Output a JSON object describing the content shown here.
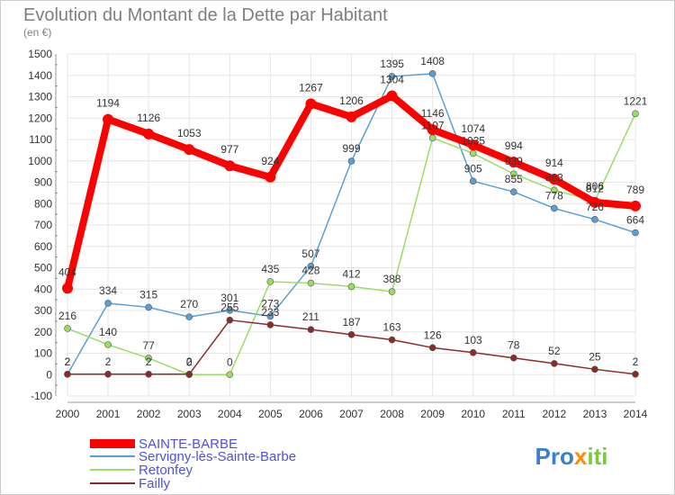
{
  "chart_data": {
    "type": "line",
    "title": "Evolution du Montant de la Dette par Habitant",
    "unit_label": "(en €)",
    "x": [
      "2000",
      "2001",
      "2002",
      "2003",
      "2004",
      "2005",
      "2006",
      "2007",
      "2008",
      "2009",
      "2010",
      "2011",
      "2012",
      "2013",
      "2014"
    ],
    "ylim": [
      -100,
      1500
    ],
    "yticks": [
      "-100",
      "0",
      "100",
      "200",
      "300",
      "400",
      "500",
      "600",
      "700",
      "800",
      "900",
      "1000",
      "1100",
      "1200",
      "1300",
      "1400",
      "1500"
    ],
    "grid": true,
    "legend_position": "bottom-left",
    "series": [
      {
        "name": "SAINTE-BARBE",
        "color": "#ff0000",
        "values": [
          404,
          1194,
          1126,
          1053,
          977,
          924,
          1267,
          1206,
          1304,
          1146,
          1074,
          994,
          914,
          806,
          789
        ],
        "labels": [
          "404",
          "1194",
          "1126",
          "1053",
          "977",
          "924",
          "1267",
          "1206",
          "1304",
          "1146",
          "1074",
          "994",
          "914",
          "806",
          "789"
        ]
      },
      {
        "name": "Servigny-lès-Sainte-Barbe",
        "color": "#5a9fd4",
        "values": [
          2,
          334,
          315,
          270,
          301,
          273,
          507,
          999,
          1395,
          1408,
          905,
          855,
          778,
          726,
          664
        ],
        "labels": [
          "2",
          "334",
          "315",
          "270",
          "301",
          "273",
          "507",
          "999",
          "1395",
          "1408",
          "905",
          "855",
          "778",
          "726",
          "664"
        ]
      },
      {
        "name": "Retonfey",
        "color": "#99dd66",
        "values": [
          216,
          140,
          77,
          0,
          0,
          435,
          428,
          412,
          388,
          1107,
          1035,
          939,
          863,
          812,
          1221
        ],
        "labels": [
          "216",
          "140",
          "77",
          "0",
          "0",
          "435",
          "428",
          "412",
          "388",
          "1107",
          "1035",
          "939",
          "863",
          "812",
          "1221"
        ]
      },
      {
        "name": "Failly",
        "color": "#8b2a2a",
        "values": [
          2,
          2,
          2,
          2,
          255,
          233,
          211,
          187,
          163,
          126,
          103,
          78,
          52,
          25,
          2
        ],
        "labels": [
          "2",
          "2",
          "2",
          "2",
          "255",
          "233",
          "211",
          "187",
          "163",
          "126",
          "103",
          "78",
          "52",
          "25",
          "2"
        ]
      }
    ]
  },
  "logo": {
    "text": "Proxiti"
  }
}
